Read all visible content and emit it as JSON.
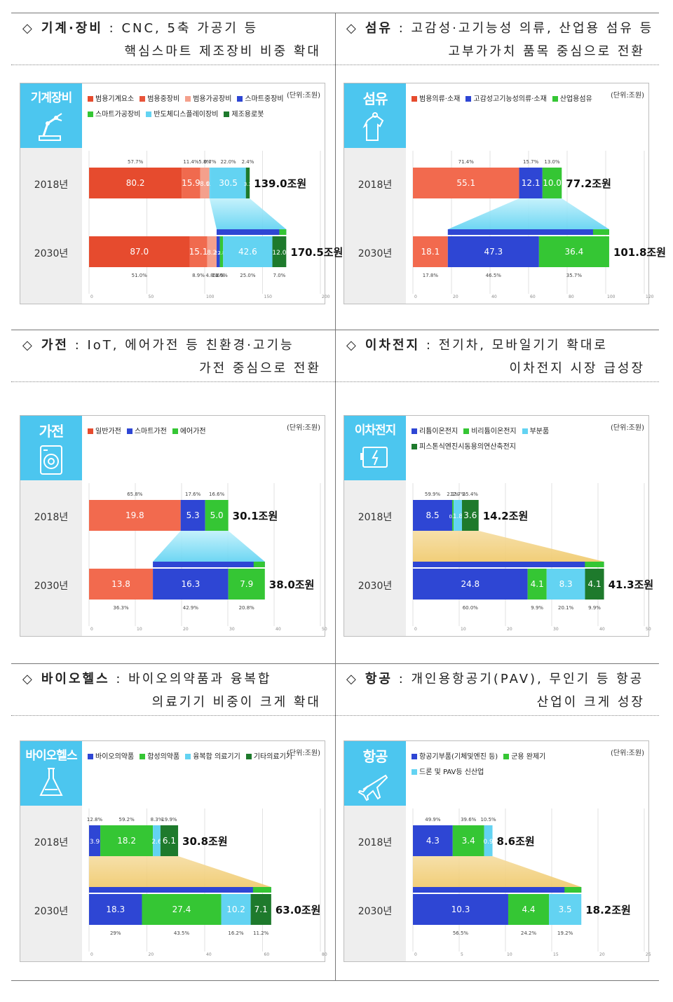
{
  "units_label": "(단위:조원)",
  "colors": {
    "badge": "#4cc6ef",
    "red": "#e64b2e",
    "salmon": "#f27a60",
    "pink": "#f4a08c",
    "blue": "#2e46d4",
    "green": "#35c634",
    "cyan": "#63d3f2",
    "darkgreen": "#1e7a2c"
  },
  "sections": [
    {
      "id": "machinery",
      "header": {
        "key": "기계·장비",
        "line1": "CNC, 5축 가공기 등",
        "line2": "핵심스마트 제조장비 비중 확대"
      },
      "badge": "기계장비",
      "icon": "robot-arm-icon",
      "chart_data": {
        "type": "bar",
        "orientation": "horizontal-stacked",
        "xlim": [
          0,
          200
        ],
        "xticks": [
          "0",
          "50",
          "100",
          "150",
          "200"
        ],
        "legend": [
          "범용기계요소",
          "범용중장비",
          "범용가공장비",
          "스마트중장비",
          "스마트가공장비",
          "반도체디스플레이장비",
          "제조용로봇"
        ],
        "legend_colors": [
          "#e64b2e",
          "#e8543a",
          "#f4a08c",
          "#2e46d4",
          "#35c634",
          "#63d3f2",
          "#1e7a2c"
        ],
        "rows": [
          {
            "year": "2018년",
            "total": "139.0조원",
            "segments": [
              {
                "value": 80.2,
                "label": "80.2",
                "share": "57.7%",
                "color": "#e64b2e"
              },
              {
                "value": 15.9,
                "label": "15.9",
                "share": "11.4%",
                "color": "#f06a4e"
              },
              {
                "value": 8.0,
                "label": "8.0",
                "share": "5.8%",
                "color": "#f4a08c"
              },
              {
                "value": 1.0,
                "label": "1.0",
                "share": "0.7%",
                "color": "#63d3f2"
              },
              {
                "value": 30.5,
                "label": "30.5",
                "share": "22.0%",
                "color": "#63d3f2"
              },
              {
                "value": 3.3,
                "label": "3.3",
                "share": "2.4%",
                "color": "#1e7a2c"
              }
            ]
          },
          {
            "year": "2030년",
            "total": "170.5조원",
            "segments": [
              {
                "value": 87.0,
                "label": "87.0",
                "share": "51.0%",
                "color": "#e64b2e"
              },
              {
                "value": 15.1,
                "label": "15.1",
                "share": "8.9%",
                "color": "#f06a4e"
              },
              {
                "value": 8.2,
                "label": "8.2",
                "share": "4.8%",
                "color": "#f4a08c"
              },
              {
                "value": 2.8,
                "label": "2.8",
                "share": "1.6%",
                "color": "#2e46d4"
              },
              {
                "value": 2.8,
                "label": "2.8",
                "share": "1.6%",
                "color": "#35c634"
              },
              {
                "value": 42.6,
                "label": "42.6",
                "share": "25.0%",
                "color": "#63d3f2"
              },
              {
                "value": 12.0,
                "label": "12.0",
                "share": "7.0%",
                "color": "#1e7a2c"
              }
            ]
          }
        ],
        "highlight": {
          "from_row": 0,
          "from_seg": [
            3,
            5
          ],
          "to_row": 1,
          "to_seg": [
            3,
            6
          ],
          "style": "cyan"
        }
      }
    },
    {
      "id": "textile",
      "header": {
        "key": "섬유",
        "line1": "고감성·고기능성 의류, 산업용 섬유 등",
        "line2": "고부가가치 품목 중심으로 전환"
      },
      "badge": "섬유",
      "icon": "garment-icon",
      "chart_data": {
        "type": "bar",
        "orientation": "horizontal-stacked",
        "xlim": [
          0,
          120
        ],
        "xticks": [
          "0",
          "20",
          "40",
          "60",
          "80",
          "100",
          "120"
        ],
        "legend": [
          "범용의류·소재",
          "고감성고기능성의류·소재",
          "산업용섬유"
        ],
        "legend_colors": [
          "#e64b2e",
          "#2e46d4",
          "#35c634"
        ],
        "rows": [
          {
            "year": "2018년",
            "total": "77.2조원",
            "segments": [
              {
                "value": 55.1,
                "label": "55.1",
                "share": "71.4%",
                "color": "#f26a4e"
              },
              {
                "value": 12.1,
                "label": "12.1",
                "share": "15.7%",
                "color": "#2e46d4"
              },
              {
                "value": 10.0,
                "label": "10.0",
                "share": "13.0%",
                "color": "#35c634"
              }
            ]
          },
          {
            "year": "2030년",
            "total": "101.8조원",
            "segments": [
              {
                "value": 18.1,
                "label": "18.1",
                "share": "17.8%",
                "color": "#f26a4e"
              },
              {
                "value": 47.3,
                "label": "47.3",
                "share": "46.5%",
                "color": "#2e46d4"
              },
              {
                "value": 36.4,
                "label": "36.4",
                "share": "35.7%",
                "color": "#35c634"
              }
            ]
          }
        ],
        "highlight": {
          "from_row": 0,
          "from_seg": [
            1,
            2
          ],
          "to_row": 1,
          "to_seg": [
            1,
            2
          ],
          "style": "cyan"
        }
      }
    },
    {
      "id": "appliance",
      "header": {
        "key": "가전",
        "line1": "IoT, 에어가전 등 친환경·고기능",
        "line2": "가전 중심으로 전환"
      },
      "badge": "가전",
      "icon": "washing-machine-icon",
      "chart_data": {
        "type": "bar",
        "orientation": "horizontal-stacked",
        "xlim": [
          0,
          50
        ],
        "xticks": [
          "0",
          "10",
          "20",
          "30",
          "40",
          "50"
        ],
        "legend": [
          "일반가전",
          "스마트가전",
          "에어가전"
        ],
        "legend_colors": [
          "#e64b2e",
          "#2e46d4",
          "#35c634"
        ],
        "rows": [
          {
            "year": "2018년",
            "total": "30.1조원",
            "segments": [
              {
                "value": 19.8,
                "label": "19.8",
                "share": "65.8%",
                "color": "#f26a4e"
              },
              {
                "value": 5.3,
                "label": "5.3",
                "share": "17.6%",
                "color": "#2e46d4"
              },
              {
                "value": 5.0,
                "label": "5.0",
                "share": "16.6%",
                "color": "#35c634"
              }
            ]
          },
          {
            "year": "2030년",
            "total": "38.0조원",
            "segments": [
              {
                "value": 13.8,
                "label": "13.8",
                "share": "36.3%",
                "color": "#f26a4e"
              },
              {
                "value": 16.3,
                "label": "16.3",
                "share": "42.9%",
                "color": "#2e46d4"
              },
              {
                "value": 7.9,
                "label": "7.9",
                "share": "20.8%",
                "color": "#35c634"
              }
            ]
          }
        ],
        "highlight": {
          "from_row": 0,
          "from_seg": [
            1,
            2
          ],
          "to_row": 1,
          "to_seg": [
            1,
            2
          ],
          "style": "cyan"
        }
      }
    },
    {
      "id": "battery",
      "header": {
        "key": "이차전지",
        "line1": "전기차, 모바일기기 확대로",
        "line2": "이차전지 시장 급성장"
      },
      "badge": "이차전지",
      "icon": "battery-icon",
      "chart_data": {
        "type": "bar",
        "orientation": "horizontal-stacked",
        "xlim": [
          0,
          50
        ],
        "xticks": [
          "0",
          "10",
          "20",
          "30",
          "40",
          "50"
        ],
        "legend": [
          "리튬이온전지",
          "비리튬이온전지",
          "부분품",
          "피스톤식엔진시동용의연산축전지"
        ],
        "legend_colors": [
          "#2e46d4",
          "#35c634",
          "#63d3f2",
          "#1e7a2c"
        ],
        "rows": [
          {
            "year": "2018년",
            "total": "14.2조원",
            "segments": [
              {
                "value": 8.5,
                "label": "8.5",
                "share": "59.9%",
                "color": "#2e46d4"
              },
              {
                "value": 0.3,
                "label": "0.3",
                "share": "2.1%",
                "color": "#35c634"
              },
              {
                "value": 1.8,
                "label": "1.8",
                "share": "12.7%",
                "color": "#63d3f2"
              },
              {
                "value": 3.6,
                "label": "3.6",
                "share": "25.4%",
                "color": "#1e7a2c"
              }
            ]
          },
          {
            "year": "2030년",
            "total": "41.3조원",
            "segments": [
              {
                "value": 24.8,
                "label": "24.8",
                "share": "60.0%",
                "color": "#2e46d4"
              },
              {
                "value": 4.1,
                "label": "4.1",
                "share": "9.9%",
                "color": "#35c634"
              },
              {
                "value": 8.3,
                "label": "8.3",
                "share": "20.1%",
                "color": "#63d3f2"
              },
              {
                "value": 4.1,
                "label": "4.1",
                "share": "9.9%",
                "color": "#1e7a2c"
              }
            ]
          }
        ],
        "highlight": {
          "from_row": 0,
          "from_seg": [
            0,
            3
          ],
          "to_row": 1,
          "to_seg": [
            0,
            3
          ],
          "style": "gold"
        }
      }
    },
    {
      "id": "biohealth",
      "header": {
        "key": "바이오헬스",
        "line1": "바이오의약품과 융복합",
        "line2": "의료기기 비중이 크게 확대"
      },
      "badge": "바이오헬스",
      "icon": "flask-icon",
      "chart_data": {
        "type": "bar",
        "orientation": "horizontal-stacked",
        "xlim": [
          0,
          80
        ],
        "xticks": [
          "0",
          "20",
          "40",
          "60",
          "80"
        ],
        "legend": [
          "바이오의약품",
          "합성의약품",
          "융복합 의료기기",
          "기타의료기기"
        ],
        "legend_colors": [
          "#2e46d4",
          "#35c634",
          "#63d3f2",
          "#1e7a2c"
        ],
        "rows": [
          {
            "year": "2018년",
            "total": "30.8조원",
            "segments": [
              {
                "value": 3.9,
                "label": "3.9",
                "share": "12.8%",
                "color": "#2e46d4"
              },
              {
                "value": 18.2,
                "label": "18.2",
                "share": "59.2%",
                "color": "#35c634"
              },
              {
                "value": 2.6,
                "label": "2.6",
                "share": "8.3%",
                "color": "#63d3f2"
              },
              {
                "value": 6.1,
                "label": "6.1",
                "share": "19.9%",
                "color": "#1e7a2c"
              }
            ]
          },
          {
            "year": "2030년",
            "total": "63.0조원",
            "segments": [
              {
                "value": 18.3,
                "label": "18.3",
                "share": "29%",
                "color": "#2e46d4"
              },
              {
                "value": 27.4,
                "label": "27.4",
                "share": "43.5%",
                "color": "#35c634"
              },
              {
                "value": 10.2,
                "label": "10.2",
                "share": "16.2%",
                "color": "#63d3f2"
              },
              {
                "value": 7.1,
                "label": "7.1",
                "share": "11.2%",
                "color": "#1e7a2c"
              }
            ]
          }
        ],
        "highlight": {
          "from_row": 0,
          "from_seg": [
            0,
            3
          ],
          "to_row": 1,
          "to_seg": [
            0,
            3
          ],
          "style": "gold"
        }
      }
    },
    {
      "id": "aerospace",
      "header": {
        "key": "항공",
        "line1": "개인용항공기(PAV), 무인기 등 항공",
        "line2": "산업이 크게 성장"
      },
      "badge": "항공",
      "icon": "airplane-icon",
      "chart_data": {
        "type": "bar",
        "orientation": "horizontal-stacked",
        "xlim": [
          0,
          25
        ],
        "xticks": [
          "0",
          "5",
          "10",
          "15",
          "20",
          "25"
        ],
        "legend": [
          "항공기부품(기체및엔진 등)",
          "군용 완제기",
          "드론 및 PAV등 신산업"
        ],
        "legend_colors": [
          "#2e46d4",
          "#35c634",
          "#63d3f2"
        ],
        "rows": [
          {
            "year": "2018년",
            "total": "8.6조원",
            "segments": [
              {
                "value": 4.3,
                "label": "4.3",
                "share": "49.9%",
                "color": "#2e46d4"
              },
              {
                "value": 3.4,
                "label": "3.4",
                "share": "39.6%",
                "color": "#35c634"
              },
              {
                "value": 0.9,
                "label": "0.9",
                "share": "10.5%",
                "color": "#63d3f2"
              }
            ]
          },
          {
            "year": "2030년",
            "total": "18.2조원",
            "segments": [
              {
                "value": 10.3,
                "label": "10.3",
                "share": "56.5%",
                "color": "#2e46d4"
              },
              {
                "value": 4.4,
                "label": "4.4",
                "share": "24.2%",
                "color": "#35c634"
              },
              {
                "value": 3.5,
                "label": "3.5",
                "share": "19.2%",
                "color": "#63d3f2"
              }
            ]
          }
        ],
        "highlight": {
          "from_row": 0,
          "from_seg": [
            0,
            2
          ],
          "to_row": 1,
          "to_seg": [
            0,
            2
          ],
          "style": "gold"
        }
      }
    }
  ]
}
